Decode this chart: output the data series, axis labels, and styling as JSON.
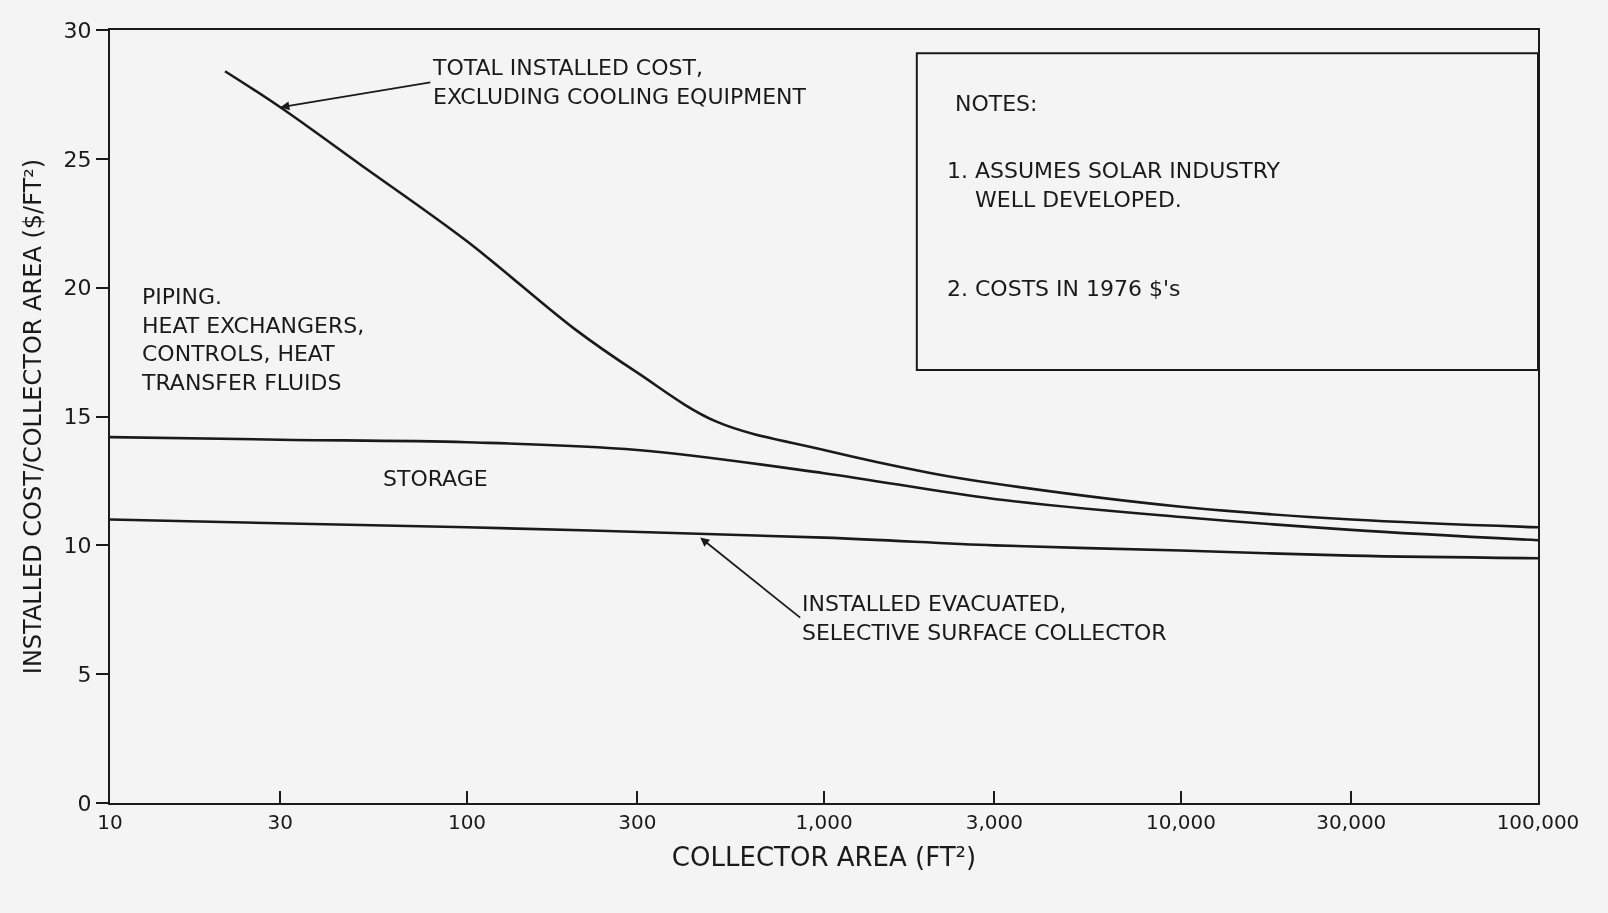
{
  "chart_data": {
    "type": "line",
    "xlabel": "COLLECTOR AREA (FT²)",
    "ylabel": "INSTALLED COST/COLLECTOR AREA ($/FT²)",
    "log": "x",
    "grid": false,
    "marker": "none",
    "line_style": "solid",
    "xlim": [
      10,
      100000
    ],
    "xticks": [
      10,
      30,
      100,
      300,
      {
        "value": 1000,
        "label": "1,000"
      },
      {
        "value": 3000,
        "label": "3,000"
      },
      {
        "value": 10000,
        "label": "10,000"
      },
      {
        "value": 30000,
        "label": "30,000"
      },
      {
        "value": 100000,
        "label": "100,000"
      }
    ],
    "ylim": [
      0,
      30
    ],
    "yticks": [
      0,
      5,
      10,
      15,
      20,
      25,
      30
    ],
    "series": [
      {
        "color": "#1a1a1a",
        "x": [
          21,
          30,
          50,
          100,
          200,
          300,
          500,
          1000,
          2000,
          3000,
          10000,
          30000,
          100000
        ],
        "values": [
          28.4,
          27.0,
          24.8,
          21.8,
          18.4,
          16.7,
          14.8,
          13.7,
          12.8,
          12.4,
          11.5,
          11.0,
          10.7
        ]
      },
      {
        "color": "#1a1a1a",
        "x": [
          10,
          30,
          100,
          300,
          1000,
          3000,
          10000,
          30000,
          100000
        ],
        "values": [
          14.2,
          14.1,
          14.0,
          13.7,
          12.8,
          11.8,
          11.1,
          10.6,
          10.2
        ]
      },
      {
        "color": "#1a1a1a",
        "x": [
          10,
          100,
          1000,
          3000,
          10000,
          30000,
          100000
        ],
        "values": [
          11.0,
          10.7,
          10.3,
          10.0,
          9.8,
          9.6,
          9.5
        ]
      }
    ],
    "annotations": [
      {
        "text": "TOTAL INSTALLED COST,\nEXCLUDING COOLING EQUIPMENT",
        "x": 30,
        "y": 27
      },
      "PIPING.\nHEAT EXCHANGERS,\nCONTROLS, HEAT\nTRANSFER FLUIDS",
      "STORAGE",
      {
        "text": "INSTALLED EVACUATED,\nSELECTIVE SURFACE COLLECTOR",
        "x": 450,
        "y": 10.3
      },
      "NOTES:",
      "1. ASSUMES SOLAR INDUSTRY\n    WELL DEVELOPED.",
      "2. COSTS IN 1976 $'s"
    ]
  }
}
